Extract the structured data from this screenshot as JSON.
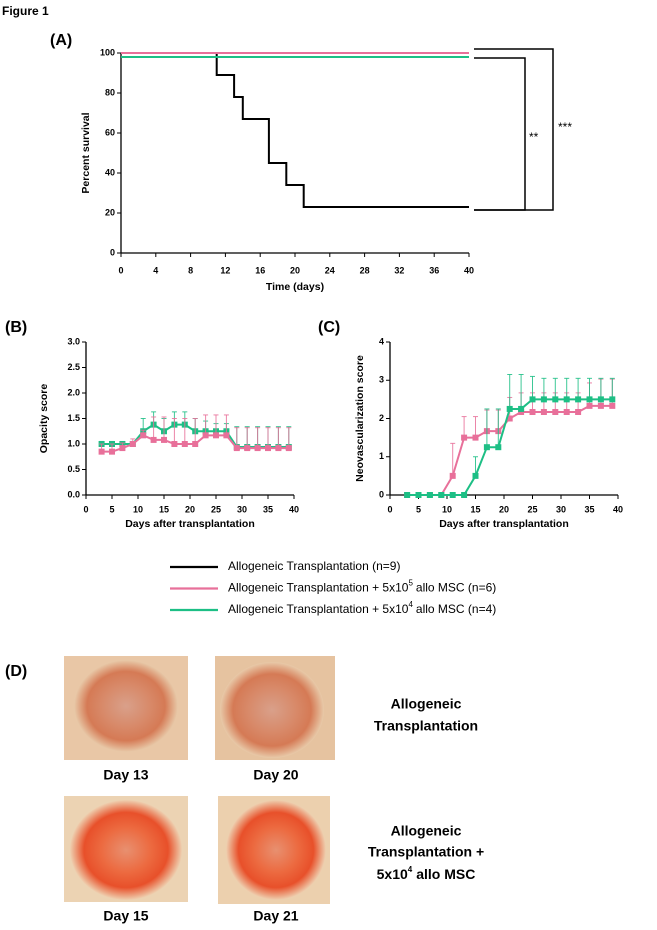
{
  "figure_title": "Figure 1",
  "chart_data": [
    {
      "type": "step",
      "label": "(A)",
      "xlabel": "Time (days)",
      "ylabel": "Percent survival",
      "xlim": [
        0,
        40
      ],
      "xticks": [
        0,
        4,
        8,
        12,
        16,
        20,
        24,
        28,
        32,
        36,
        40
      ],
      "ylim": [
        0,
        100
      ],
      "yticks": [
        0,
        20,
        40,
        60,
        80,
        100
      ],
      "annotations": [
        "**",
        "***"
      ],
      "series": [
        {
          "color": "#000000",
          "x": [
            0,
            11,
            13,
            14,
            17,
            19,
            21,
            40
          ],
          "values": [
            100,
            89,
            78,
            67,
            45,
            34,
            23,
            23
          ]
        },
        {
          "color": "#e8709a",
          "x": [
            0,
            40
          ],
          "values": [
            100,
            100
          ]
        },
        {
          "color": "#1dbf85",
          "x": [
            0,
            40
          ],
          "values": [
            98,
            98
          ]
        }
      ]
    },
    {
      "type": "line",
      "label": "(B)",
      "xlabel": "Days after transplantation",
      "ylabel": "Opacity score",
      "xlim": [
        0,
        40
      ],
      "xticks": [
        0,
        5,
        10,
        15,
        20,
        25,
        30,
        35,
        40
      ],
      "ylim": [
        0,
        3
      ],
      "yticks": [
        {
          "value": 0,
          "label": "0.0"
        },
        0.5,
        {
          "value": 1,
          "label": "1.0"
        },
        1.5,
        {
          "value": 2,
          "label": "2.0"
        },
        2.5,
        {
          "value": 3,
          "label": "3.0"
        }
      ],
      "x": [
        3,
        5,
        7,
        9,
        11,
        13,
        15,
        17,
        19,
        21,
        23,
        25,
        27,
        29,
        31,
        33,
        35,
        37,
        39
      ],
      "series": [
        {
          "color": "#1dbf85",
          "values": [
            1.0,
            1.0,
            1.0,
            1.0,
            1.25,
            1.38,
            1.25,
            1.38,
            1.38,
            1.25,
            1.25,
            1.25,
            1.25,
            0.94,
            0.94,
            0.94,
            0.94,
            0.94,
            0.94
          ],
          "errors": [
            0.05,
            0.05,
            0.05,
            0.05,
            0.25,
            0.25,
            0.25,
            0.25,
            0.25,
            0.25,
            0.2,
            0.15,
            0.15,
            0.4,
            0.4,
            0.4,
            0.4,
            0.4,
            0.4
          ]
        },
        {
          "color": "#e8709a",
          "values": [
            0.85,
            0.85,
            0.92,
            1.0,
            1.17,
            1.08,
            1.08,
            1.0,
            1.0,
            1.0,
            1.17,
            1.17,
            1.17,
            0.92,
            0.92,
            0.92,
            0.92,
            0.92,
            0.92
          ],
          "errors": [
            0.15,
            0.15,
            0.1,
            0.1,
            0.1,
            0.45,
            0.45,
            0.5,
            0.5,
            0.5,
            0.4,
            0.4,
            0.4,
            0.4,
            0.4,
            0.4,
            0.4,
            0.4,
            0.4
          ]
        }
      ]
    },
    {
      "type": "line",
      "label": "(C)",
      "xlabel": "Days after transplantation",
      "ylabel": "Neovascularization score",
      "xlim": [
        0,
        40
      ],
      "xticks": [
        0,
        5,
        10,
        15,
        20,
        25,
        30,
        35,
        40
      ],
      "ylim": [
        0,
        4
      ],
      "yticks": [
        0,
        1,
        2,
        3,
        4
      ],
      "x": [
        3,
        5,
        7,
        9,
        11,
        13,
        15,
        17,
        19,
        21,
        23,
        25,
        27,
        29,
        31,
        33,
        35,
        37,
        39
      ],
      "series": [
        {
          "color": "#e8709a",
          "values": [
            0,
            0,
            0,
            0,
            0.5,
            1.5,
            1.5,
            1.67,
            1.67,
            2.0,
            2.17,
            2.17,
            2.17,
            2.17,
            2.17,
            2.17,
            2.33,
            2.33,
            2.33
          ],
          "errors": [
            0,
            0,
            0,
            0,
            0.85,
            0.55,
            0.55,
            0.55,
            0.55,
            0.55,
            0.5,
            0.5,
            0.5,
            0.5,
            0.5,
            0.5,
            0.6,
            0.7,
            0.7
          ]
        },
        {
          "color": "#1dbf85",
          "values": [
            0,
            0,
            0,
            0,
            0,
            0,
            0.5,
            1.25,
            1.25,
            2.25,
            2.25,
            2.5,
            2.5,
            2.5,
            2.5,
            2.5,
            2.5,
            2.5,
            2.5
          ],
          "errors": [
            0,
            0,
            0,
            0,
            0,
            0,
            0.5,
            1.0,
            1.0,
            0.9,
            0.9,
            0.6,
            0.55,
            0.55,
            0.55,
            0.55,
            0.55,
            0.55,
            0.55
          ]
        }
      ]
    }
  ],
  "legend": [
    {
      "color": "#000000",
      "text": "Allogeneic Transplantation (n=9)"
    },
    {
      "color": "#e8709a",
      "text": "Allogeneic Transplantation + 5x10",
      "exponent": "5",
      "rest": "allo MSC (n=6)"
    },
    {
      "color": "#1dbf85",
      "text": "Allogeneic Transplantation + 5x10",
      "exponent": "4",
      "rest": "allo MSC (n=4)"
    }
  ],
  "panel_d": {
    "label": "(D)",
    "captions": [
      "Day 13",
      "Day 20",
      "Day 15",
      "Day 21"
    ],
    "row_labels": [
      {
        "lines": [
          "Allogeneic",
          "Transplantation"
        ]
      },
      {
        "lines": [
          "Allogeneic",
          "Transplantation +"
        ],
        "text": "5x10",
        "exponent": "4",
        "rest": "allo MSC"
      }
    ]
  }
}
